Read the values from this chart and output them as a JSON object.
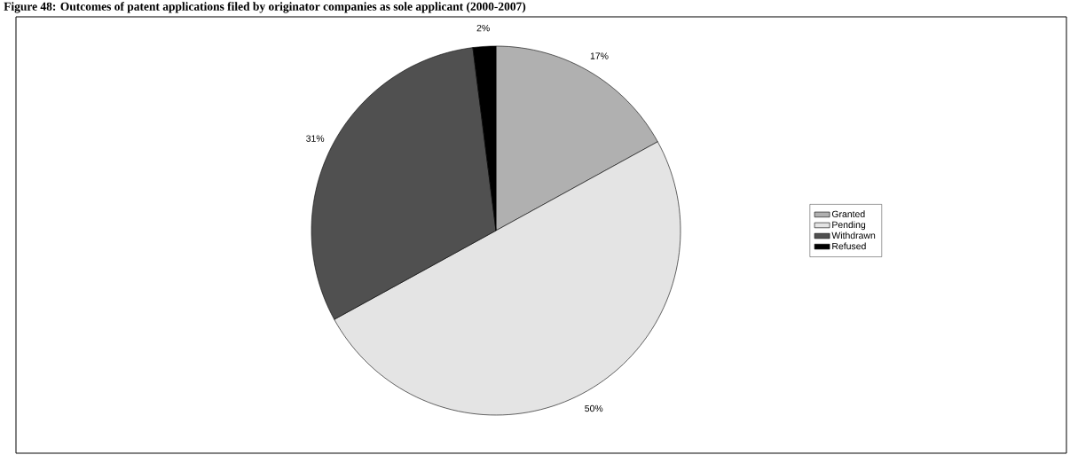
{
  "chart_data": {
    "type": "pie",
    "title": "Figure 48: Outcomes of patent applications filed by originator companies as sole applicant (2000-2007)",
    "categories": [
      "Granted",
      "Pending",
      "Withdrawn",
      "Refused"
    ],
    "values": [
      17,
      50,
      31,
      2
    ],
    "value_labels": [
      "17%",
      "50%",
      "31%",
      "2%"
    ],
    "colors": [
      "#b0b0b0",
      "#e4e4e4",
      "#505050",
      "#000000"
    ],
    "legend": "right"
  }
}
